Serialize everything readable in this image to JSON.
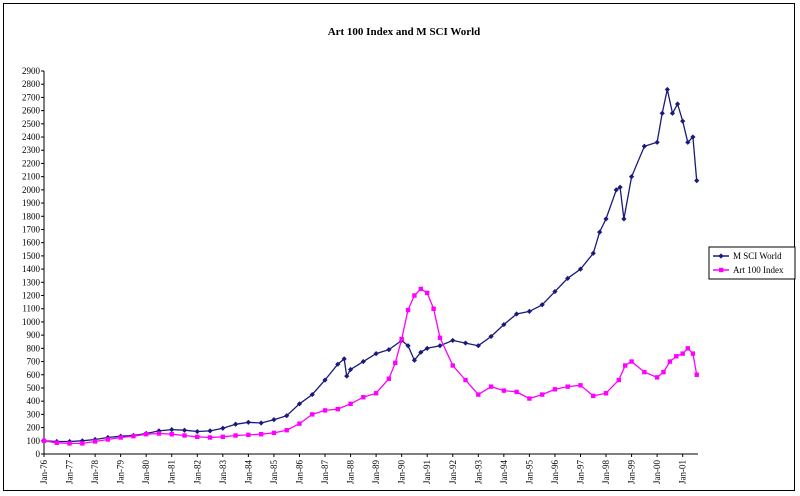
{
  "chart_data": {
    "type": "line",
    "title": "Art 100 Index and M SCI World",
    "xlabel": "",
    "ylabel": "",
    "ylim": [
      0,
      2900
    ],
    "yticks": [
      0,
      100,
      200,
      300,
      400,
      500,
      600,
      700,
      800,
      900,
      1000,
      1100,
      1200,
      1300,
      1400,
      1500,
      1600,
      1700,
      1800,
      1900,
      2000,
      2100,
      2200,
      2300,
      2400,
      2500,
      2600,
      2700,
      2800,
      2900
    ],
    "xrange": [
      "Jan-76",
      "Jul-01"
    ],
    "categories": [
      "Jan-76",
      "Jan-77",
      "Jan-78",
      "Jan-79",
      "Jan-80",
      "Jan-81",
      "Jan-82",
      "Jan-83",
      "Jan-84",
      "Jan-85",
      "Jan-86",
      "Jan-87",
      "Jan-88",
      "Jan-89",
      "Jan-90",
      "Jan-91",
      "Jan-92",
      "Jan-93",
      "Jan-94",
      "Jan-95",
      "Jan-96",
      "Jan-97",
      "Jan-98",
      "Jan-99",
      "Jan-00",
      "Jan-01"
    ],
    "legend_position": "right",
    "grid": false,
    "series": [
      {
        "name": "M SCI World",
        "color": "#1a1a7a",
        "marker": "diamond",
        "x": [
          1976.0,
          1976.5,
          1977.0,
          1977.5,
          1978.0,
          1978.5,
          1979.0,
          1979.5,
          1980.0,
          1980.5,
          1981.0,
          1981.5,
          1982.0,
          1982.5,
          1983.0,
          1983.5,
          1984.0,
          1984.5,
          1985.0,
          1985.5,
          1986.0,
          1986.5,
          1987.0,
          1987.5,
          1987.75,
          1987.85,
          1988.0,
          1988.5,
          1989.0,
          1989.5,
          1990.0,
          1990.25,
          1990.5,
          1990.75,
          1991.0,
          1991.5,
          1992.0,
          1992.5,
          1993.0,
          1993.5,
          1994.0,
          1994.5,
          1995.0,
          1995.5,
          1996.0,
          1996.5,
          1997.0,
          1997.5,
          1997.75,
          1998.0,
          1998.4,
          1998.55,
          1998.7,
          1999.0,
          1999.5,
          2000.0,
          2000.2,
          2000.4,
          2000.6,
          2000.8,
          2001.0,
          2001.2,
          2001.4,
          2001.55
        ],
        "values": [
          100,
          95,
          95,
          100,
          110,
          125,
          135,
          140,
          155,
          175,
          185,
          180,
          170,
          175,
          195,
          225,
          240,
          235,
          260,
          290,
          380,
          450,
          560,
          680,
          720,
          590,
          640,
          700,
          760,
          790,
          860,
          820,
          710,
          770,
          800,
          820,
          860,
          840,
          820,
          890,
          980,
          1060,
          1080,
          1130,
          1230,
          1330,
          1400,
          1520,
          1680,
          1780,
          2000,
          2020,
          1780,
          2100,
          2330,
          2360,
          2580,
          2760,
          2580,
          2650,
          2520,
          2360,
          2400,
          2070
        ]
      },
      {
        "name": "Art 100 Index",
        "color": "#ff00ff",
        "marker": "square",
        "x": [
          1976.0,
          1976.5,
          1977.0,
          1977.5,
          1978.0,
          1978.5,
          1979.0,
          1979.5,
          1980.0,
          1980.5,
          1981.0,
          1981.5,
          1982.0,
          1982.5,
          1983.0,
          1983.5,
          1984.0,
          1984.5,
          1985.0,
          1985.5,
          1986.0,
          1986.5,
          1987.0,
          1987.5,
          1988.0,
          1988.5,
          1989.0,
          1989.5,
          1989.75,
          1990.0,
          1990.25,
          1990.5,
          1990.75,
          1991.0,
          1991.25,
          1991.5,
          1992.0,
          1992.5,
          1993.0,
          1993.5,
          1994.0,
          1994.5,
          1995.0,
          1995.5,
          1996.0,
          1996.5,
          1997.0,
          1997.5,
          1998.0,
          1998.5,
          1998.75,
          1999.0,
          1999.5,
          2000.0,
          2000.25,
          2000.5,
          2000.75,
          2001.0,
          2001.2,
          2001.4,
          2001.55
        ],
        "values": [
          100,
          85,
          80,
          80,
          95,
          110,
          125,
          135,
          150,
          155,
          150,
          140,
          130,
          125,
          130,
          140,
          145,
          150,
          160,
          180,
          230,
          300,
          330,
          340,
          380,
          430,
          460,
          570,
          690,
          870,
          1090,
          1200,
          1250,
          1220,
          1100,
          880,
          670,
          560,
          450,
          510,
          480,
          470,
          420,
          450,
          490,
          510,
          520,
          440,
          460,
          560,
          670,
          700,
          620,
          580,
          620,
          700,
          740,
          760,
          800,
          760,
          600
        ]
      }
    ]
  }
}
